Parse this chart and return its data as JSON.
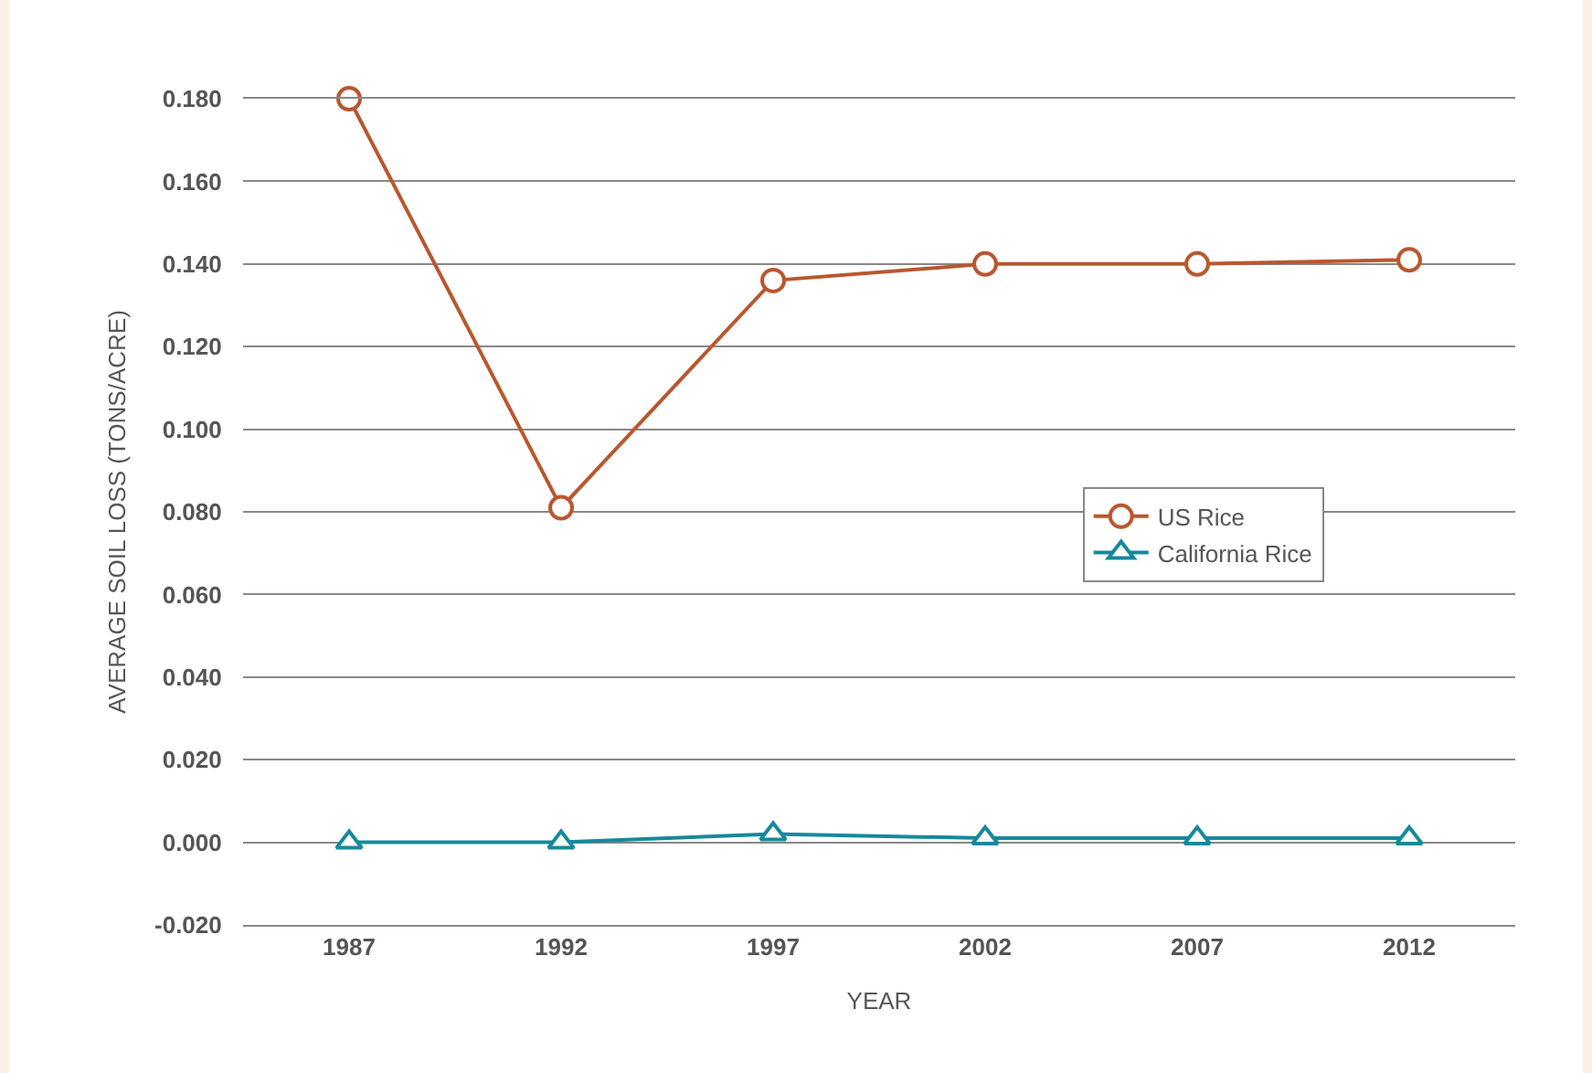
{
  "chart_data": {
    "type": "line",
    "xlabel": "YEAR",
    "ylabel": "AVERAGE SOIL LOSS (TONS/ACRE)",
    "categories": [
      "1987",
      "1992",
      "1997",
      "2002",
      "2007",
      "2012"
    ],
    "series": [
      {
        "name": "US Rice",
        "color": "#b9572f",
        "marker": "circle",
        "values": [
          0.18,
          0.081,
          0.136,
          0.14,
          0.14,
          0.141
        ]
      },
      {
        "name": "California Rice",
        "color": "#16899b",
        "marker": "triangle",
        "values": [
          0.0,
          0.0,
          0.002,
          0.001,
          0.001,
          0.001
        ]
      }
    ],
    "ylim": [
      -0.02,
      0.18
    ],
    "yticks": [
      {
        "value": -0.02,
        "label": "-0.020"
      },
      {
        "value": 0,
        "label": "0.000"
      },
      {
        "value": 0.02,
        "label": "0.020"
      },
      {
        "value": 0.04,
        "label": "0.040"
      },
      {
        "value": 0.06,
        "label": "0.060"
      },
      {
        "value": 0.08,
        "label": "0.080"
      },
      {
        "value": 0.1,
        "label": "0.100"
      },
      {
        "value": 0.12,
        "label": "0.120"
      },
      {
        "value": 0.14,
        "label": "0.140"
      },
      {
        "value": 0.16,
        "label": "0.160"
      },
      {
        "value": 0.18,
        "label": "0.180"
      }
    ],
    "grid": "y",
    "legend": "right",
    "line_style": "solid"
  }
}
